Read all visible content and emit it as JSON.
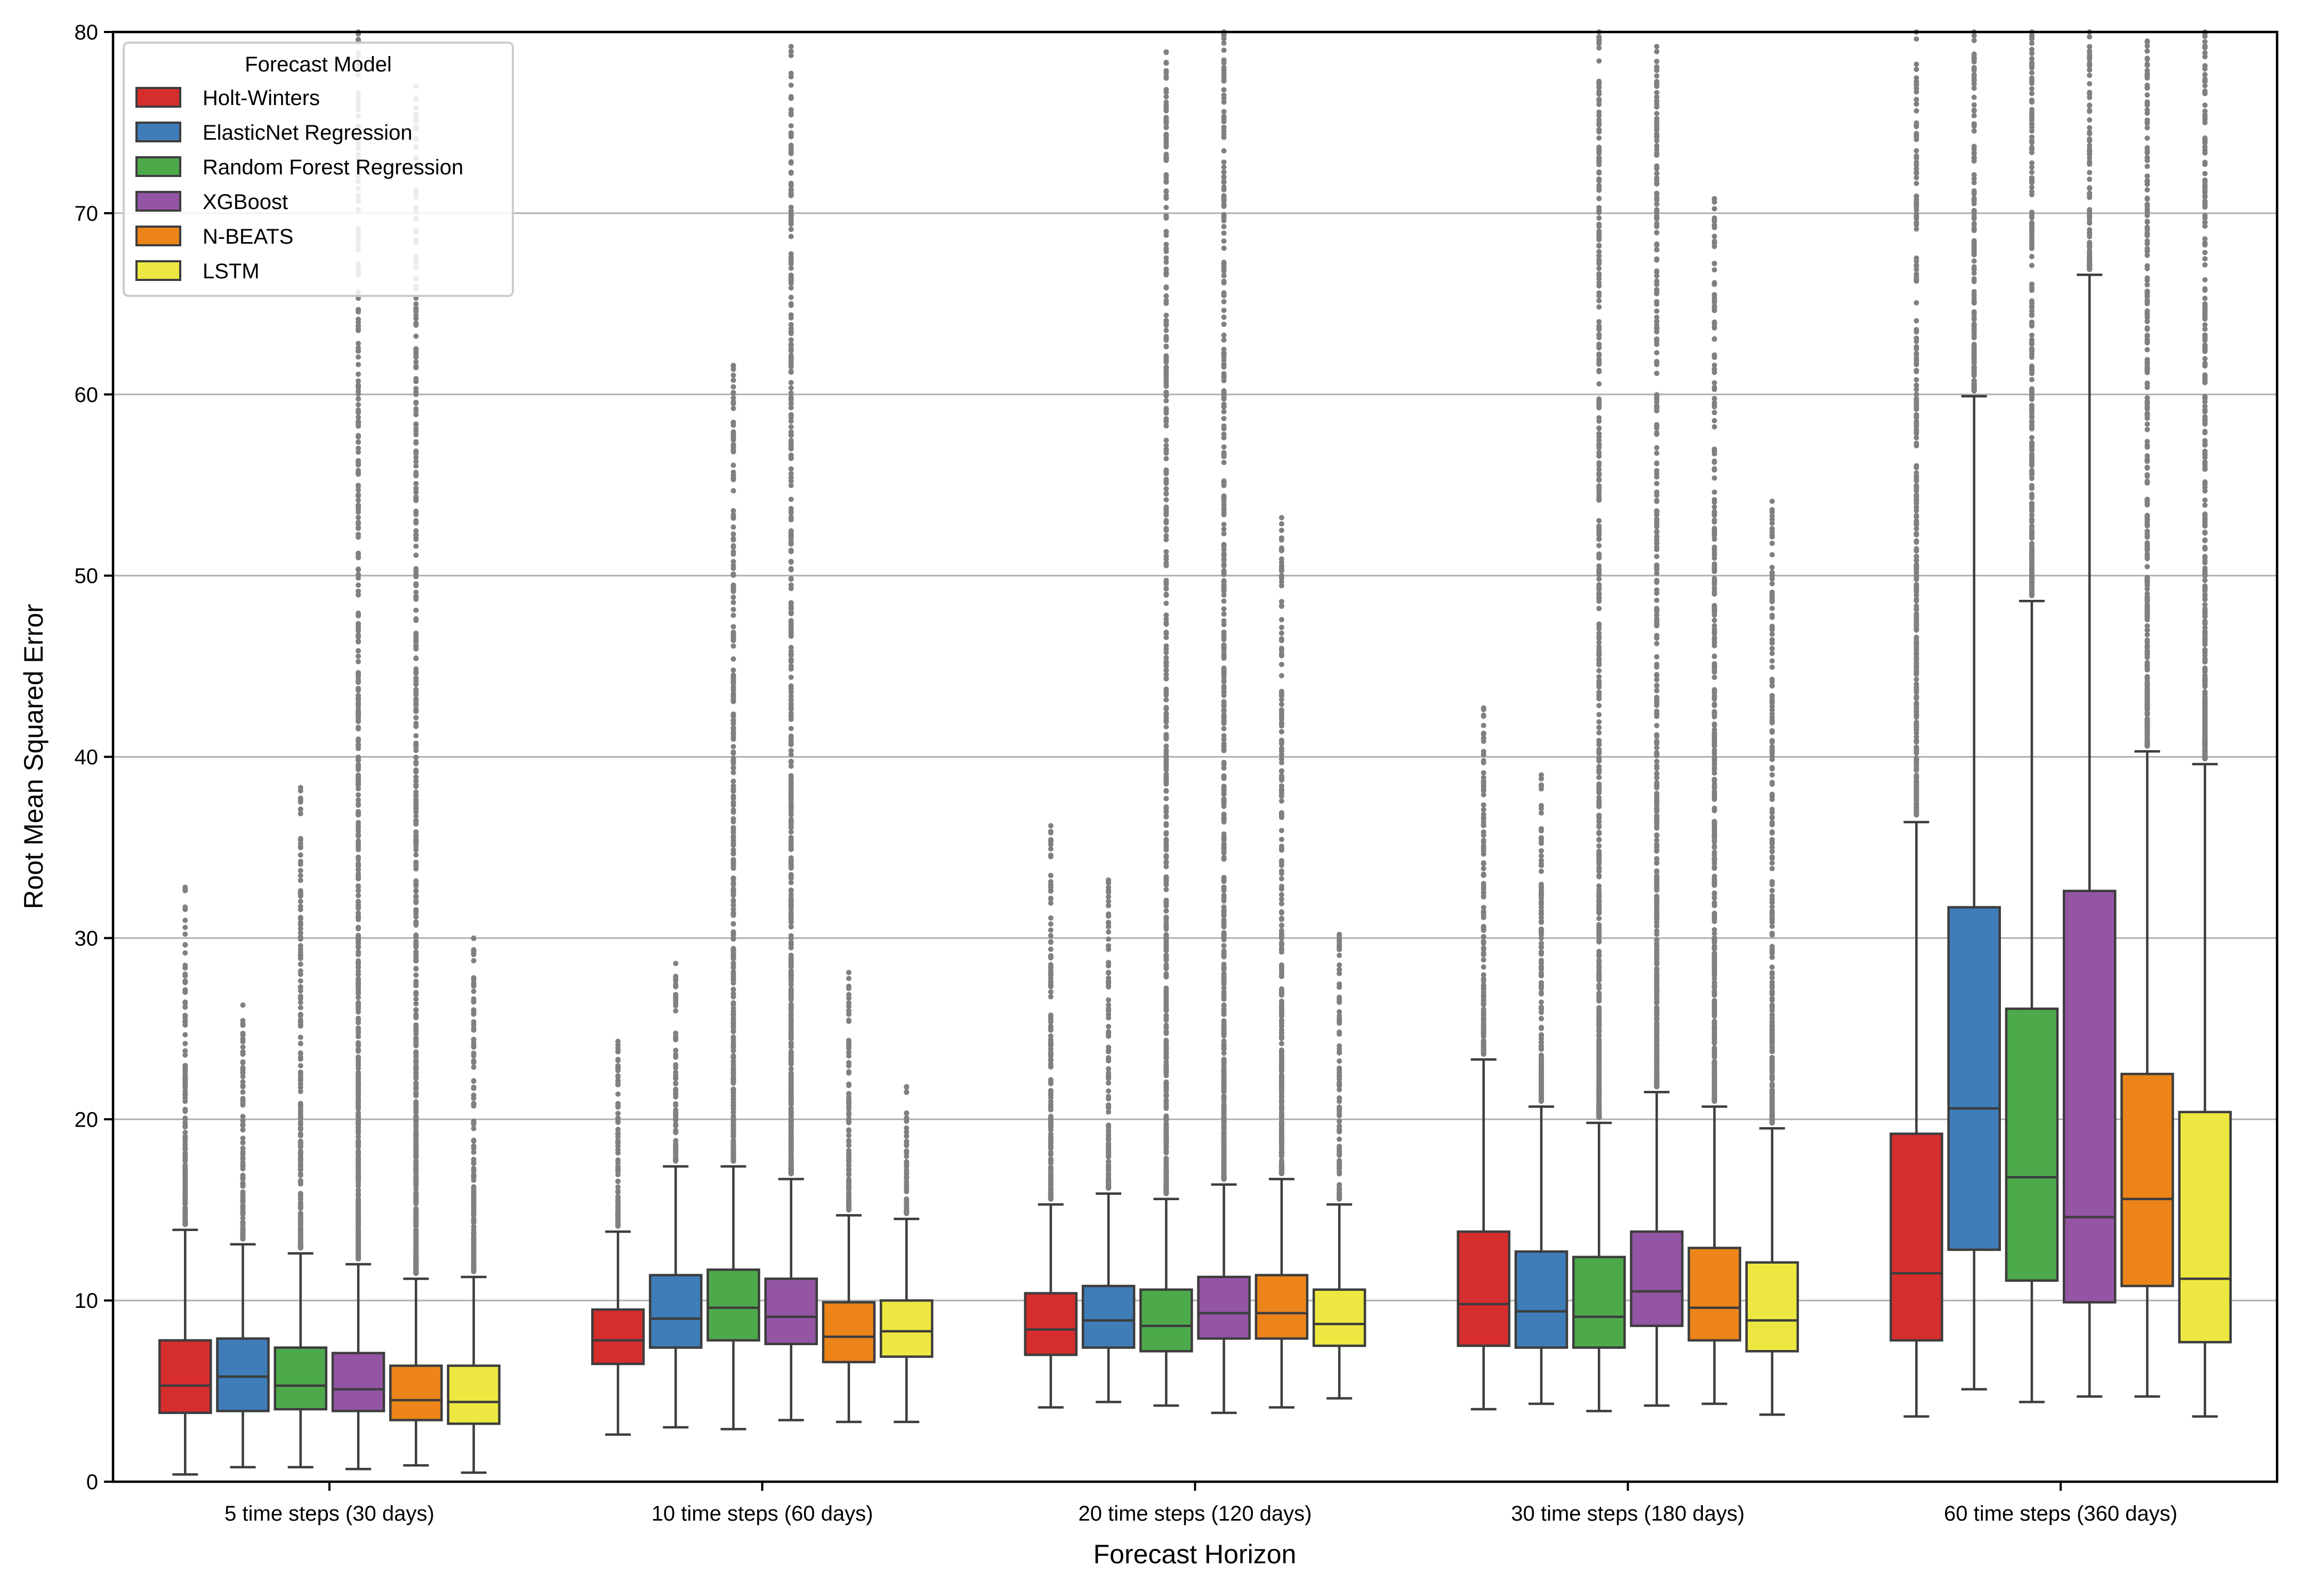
{
  "chart_data": {
    "type": "boxplot",
    "title": "",
    "xlabel": "Forecast Horizon",
    "ylabel": "Root Mean Squared Error",
    "ylim": [
      0,
      80
    ],
    "yticks": [
      0,
      10,
      20,
      30,
      40,
      50,
      60,
      70,
      80
    ],
    "ytick_labels": [
      "0",
      "10",
      "20",
      "30",
      "40",
      "50",
      "60",
      "70",
      "80"
    ],
    "grid": "horizontal",
    "legend_placement": "top-left",
    "legend_title": "Forecast Model",
    "categories": [
      "5 time steps (30 days)",
      "10 time steps (60 days)",
      "20 time steps (120 days)",
      "30 time steps (180 days)",
      "60 time steps (360 days)"
    ],
    "series": [
      {
        "name": "Holt-Winters",
        "color": "#d62d2d",
        "boxes": [
          {
            "whislo": 0.4,
            "q1": 3.8,
            "med": 5.3,
            "q3": 7.8,
            "whishi": 13.9,
            "outlier_range": [
              14.2,
              32.8
            ]
          },
          {
            "whislo": 2.6,
            "q1": 6.5,
            "med": 7.8,
            "q3": 9.5,
            "whishi": 13.8,
            "outlier_range": [
              14.1,
              24.3
            ]
          },
          {
            "whislo": 4.1,
            "q1": 7.0,
            "med": 8.4,
            "q3": 10.4,
            "whishi": 15.3,
            "outlier_range": [
              15.6,
              36.2
            ]
          },
          {
            "whislo": 4.0,
            "q1": 7.5,
            "med": 9.8,
            "q3": 13.8,
            "whishi": 23.3,
            "outlier_range": [
              23.6,
              42.7
            ]
          },
          {
            "whislo": 3.6,
            "q1": 7.8,
            "med": 11.5,
            "q3": 19.2,
            "whishi": 36.4,
            "outlier_range": [
              36.8,
              80
            ]
          }
        ]
      },
      {
        "name": "ElasticNet Regression",
        "color": "#3e7db8",
        "boxes": [
          {
            "whislo": 0.8,
            "q1": 3.9,
            "med": 5.8,
            "q3": 7.9,
            "whishi": 13.1,
            "outlier_range": [
              13.4,
              26.3
            ]
          },
          {
            "whislo": 3.0,
            "q1": 7.4,
            "med": 9.0,
            "q3": 11.4,
            "whishi": 17.4,
            "outlier_range": [
              17.7,
              28.6
            ]
          },
          {
            "whislo": 4.4,
            "q1": 7.4,
            "med": 8.9,
            "q3": 10.8,
            "whishi": 15.9,
            "outlier_range": [
              16.2,
              33.2
            ]
          },
          {
            "whislo": 4.3,
            "q1": 7.4,
            "med": 9.4,
            "q3": 12.7,
            "whishi": 20.7,
            "outlier_range": [
              21.0,
              39.0
            ]
          },
          {
            "whislo": 5.1,
            "q1": 12.8,
            "med": 20.6,
            "q3": 31.7,
            "whishi": 59.9,
            "outlier_range": [
              60.2,
              80
            ]
          }
        ]
      },
      {
        "name": "Random Forest Regression",
        "color": "#4daa4b",
        "boxes": [
          {
            "whislo": 0.8,
            "q1": 4.0,
            "med": 5.3,
            "q3": 7.4,
            "whishi": 12.6,
            "outlier_range": [
              12.9,
              38.3
            ]
          },
          {
            "whislo": 2.9,
            "q1": 7.8,
            "med": 9.6,
            "q3": 11.7,
            "whishi": 17.4,
            "outlier_range": [
              17.7,
              61.6
            ]
          },
          {
            "whislo": 4.2,
            "q1": 7.2,
            "med": 8.6,
            "q3": 10.6,
            "whishi": 15.6,
            "outlier_range": [
              15.9,
              78.9
            ]
          },
          {
            "whislo": 3.9,
            "q1": 7.4,
            "med": 9.1,
            "q3": 12.4,
            "whishi": 19.8,
            "outlier_range": [
              20.1,
              80
            ]
          },
          {
            "whislo": 4.4,
            "q1": 11.1,
            "med": 16.8,
            "q3": 26.1,
            "whishi": 48.6,
            "outlier_range": [
              48.9,
              80
            ]
          }
        ]
      },
      {
        "name": "XGBoost",
        "color": "#9455a4",
        "boxes": [
          {
            "whislo": 0.7,
            "q1": 3.9,
            "med": 5.1,
            "q3": 7.1,
            "whishi": 12.0,
            "outlier_range": [
              12.3,
              80
            ]
          },
          {
            "whislo": 3.4,
            "q1": 7.6,
            "med": 9.1,
            "q3": 11.2,
            "whishi": 16.7,
            "outlier_range": [
              17.0,
              79.2
            ]
          },
          {
            "whislo": 3.8,
            "q1": 7.9,
            "med": 9.3,
            "q3": 11.3,
            "whishi": 16.4,
            "outlier_range": [
              16.7,
              80
            ]
          },
          {
            "whislo": 4.2,
            "q1": 8.6,
            "med": 10.5,
            "q3": 13.8,
            "whishi": 21.5,
            "outlier_range": [
              21.8,
              79.2
            ]
          },
          {
            "whislo": 4.7,
            "q1": 9.9,
            "med": 14.6,
            "q3": 32.6,
            "whishi": 66.6,
            "outlier_range": [
              66.9,
              80
            ]
          }
        ]
      },
      {
        "name": "N-BEATS",
        "color": "#ec8419",
        "boxes": [
          {
            "whislo": 0.9,
            "q1": 3.4,
            "med": 4.5,
            "q3": 6.4,
            "whishi": 11.2,
            "outlier_range": [
              11.5,
              77.0
            ]
          },
          {
            "whislo": 3.3,
            "q1": 6.6,
            "med": 8.0,
            "q3": 9.9,
            "whishi": 14.7,
            "outlier_range": [
              15.0,
              28.1
            ]
          },
          {
            "whislo": 4.1,
            "q1": 7.9,
            "med": 9.3,
            "q3": 11.4,
            "whishi": 16.7,
            "outlier_range": [
              17.0,
              53.2
            ]
          },
          {
            "whislo": 4.3,
            "q1": 7.8,
            "med": 9.6,
            "q3": 12.9,
            "whishi": 20.7,
            "outlier_range": [
              21.0,
              70.8
            ]
          },
          {
            "whislo": 4.7,
            "q1": 10.8,
            "med": 15.6,
            "q3": 22.5,
            "whishi": 40.3,
            "outlier_range": [
              40.6,
              79.5
            ]
          }
        ]
      },
      {
        "name": "LSTM",
        "color": "#ede841",
        "boxes": [
          {
            "whislo": 0.5,
            "q1": 3.2,
            "med": 4.4,
            "q3": 6.4,
            "whishi": 11.3,
            "outlier_range": [
              11.6,
              30.0
            ]
          },
          {
            "whislo": 3.3,
            "q1": 6.9,
            "med": 8.3,
            "q3": 10.0,
            "whishi": 14.5,
            "outlier_range": [
              14.8,
              21.8
            ]
          },
          {
            "whislo": 4.6,
            "q1": 7.5,
            "med": 8.7,
            "q3": 10.6,
            "whishi": 15.3,
            "outlier_range": [
              15.6,
              30.2
            ]
          },
          {
            "whislo": 3.7,
            "q1": 7.2,
            "med": 8.9,
            "q3": 12.1,
            "whishi": 19.5,
            "outlier_range": [
              19.8,
              54.1
            ]
          },
          {
            "whislo": 3.6,
            "q1": 7.7,
            "med": 11.2,
            "q3": 20.4,
            "whishi": 39.6,
            "outlier_range": [
              39.9,
              80
            ]
          }
        ]
      }
    ]
  }
}
